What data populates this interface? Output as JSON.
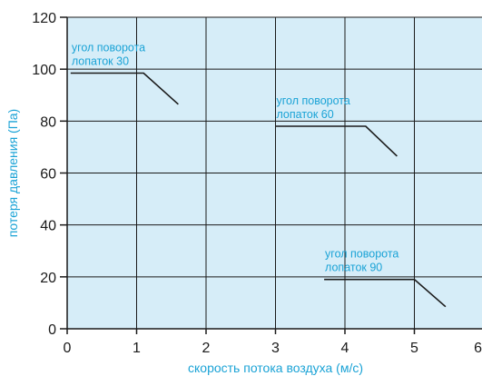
{
  "chart_data": {
    "type": "line",
    "xlabel": "скорость потока воздуха (м/с)",
    "ylabel": "потеря давления (Па)",
    "xlim": [
      0,
      6
    ],
    "ylim": [
      0,
      120
    ],
    "x_ticks": [
      "0",
      "1",
      "2",
      "3",
      "4",
      "5",
      "6"
    ],
    "y_ticks": [
      "0",
      "20",
      "40",
      "60",
      "80",
      "100",
      "120"
    ],
    "grid": true,
    "plot_background": "#d6edf8",
    "line_color": "#1a1a1a",
    "label_color": "#1ba3d6",
    "series": [
      {
        "label_lines": [
          "угол поворота",
          "лопаток 30"
        ],
        "x": [
          0.05,
          1.1,
          1.6
        ],
        "y": [
          98.5,
          98.5,
          86.5
        ]
      },
      {
        "label_lines": [
          "угол поворота",
          "лопаток 60"
        ],
        "x": [
          3.0,
          4.3,
          4.75
        ],
        "y": [
          78,
          78,
          66.5
        ]
      },
      {
        "label_lines": [
          "угол поворота",
          "лопаток 90"
        ],
        "x": [
          3.7,
          5.0,
          5.45
        ],
        "y": [
          19,
          19,
          8.5
        ]
      }
    ]
  }
}
